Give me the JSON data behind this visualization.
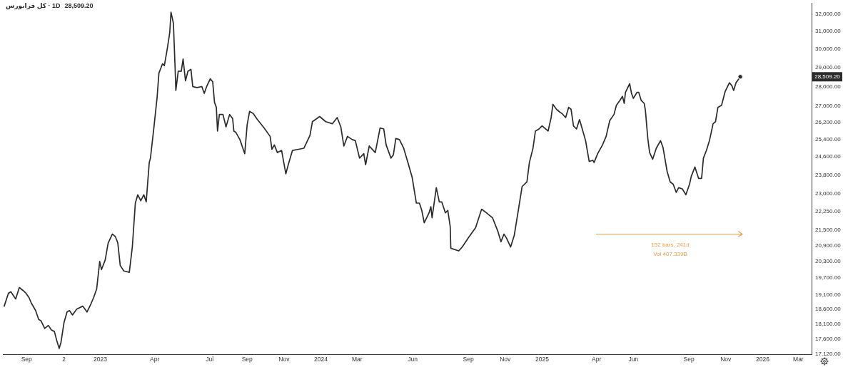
{
  "chart_data": {
    "type": "line",
    "title": "کل فرابورس · 1D",
    "subtitle": "28,509.20",
    "annotations": [
      "152 bars, 241d",
      "Vol 407.339B",
      {
        "text": "28,509.20",
        "y": 28509.2
      }
    ],
    "xlim": [
      "2022-07-24",
      "2026-03-23"
    ],
    "xticks": [
      {
        "value": "2022-09-01",
        "label": "Sep"
      },
      {
        "value": "2022-11-02",
        "label": "2"
      },
      {
        "value": "2023-01-01",
        "label": "2023"
      },
      {
        "value": "2023-04-01",
        "label": "Apr"
      },
      {
        "value": "2023-07-01",
        "label": "Jul"
      },
      {
        "value": "2023-09-01",
        "label": "Sep"
      },
      {
        "value": "2023-11-01",
        "label": "Nov"
      },
      {
        "value": "2024-01-01",
        "label": "2024"
      },
      {
        "value": "2024-03-01",
        "label": "Mar"
      },
      {
        "value": "2024-06-01",
        "label": "Jun"
      },
      {
        "value": "2024-09-01",
        "label": "Sep"
      },
      {
        "value": "2024-11-01",
        "label": "Nov"
      },
      {
        "value": "2025-01-01",
        "label": "2025"
      },
      {
        "value": "2025-04-01",
        "label": "Apr"
      },
      {
        "value": "2025-06-01",
        "label": "Jun"
      },
      {
        "value": "2025-09-01",
        "label": "Sep"
      },
      {
        "value": "2025-11-01",
        "label": "Nov"
      },
      {
        "value": "2026-01-01",
        "label": "2026"
      },
      {
        "value": "2026-03-01",
        "label": "Mar"
      }
    ],
    "ylim": [
      17120,
      32650
    ],
    "yticks": [
      {
        "value": 17120,
        "label": "17,120.00"
      },
      {
        "value": 17600,
        "label": "17,600.00"
      },
      {
        "value": 18100,
        "label": "18,100.00"
      },
      {
        "value": 18600,
        "label": "18,600.00"
      },
      {
        "value": 19100,
        "label": "19,100.00"
      },
      {
        "value": 19700,
        "label": "19,700.00"
      },
      {
        "value": 20300,
        "label": "20,300.00"
      },
      {
        "value": 20900,
        "label": "20,900.00"
      },
      {
        "value": 21500,
        "label": "21,500.00"
      },
      {
        "value": 22250,
        "label": "22,250.00"
      },
      {
        "value": 23000,
        "label": "23,000.00"
      },
      {
        "value": 23800,
        "label": "23,800.00"
      },
      {
        "value": 24600,
        "label": "24,600.00"
      },
      {
        "value": 25400,
        "label": "25,400.00"
      },
      {
        "value": 26200,
        "label": "26,200.00"
      },
      {
        "value": 27000,
        "label": "27,000.00"
      },
      {
        "value": 28000,
        "label": "28,000.00"
      },
      {
        "value": 29000,
        "label": "29,000.00"
      },
      {
        "value": 30000,
        "label": "30,000.00"
      },
      {
        "value": 31000,
        "label": "31,000.00"
      },
      {
        "value": 32000,
        "label": "32,000.00"
      }
    ],
    "log": "y",
    "grid": false,
    "legend": false,
    "series": [
      {
        "color": "#2b2b2b",
        "x": [
          "2022-07-26",
          "2022-08-02",
          "2022-08-06",
          "2022-08-14",
          "2022-08-20",
          "2022-08-26",
          "2022-08-31",
          "2022-09-05",
          "2022-09-09",
          "2022-09-16",
          "2022-09-21",
          "2022-09-25",
          "2022-10-01",
          "2022-10-07",
          "2022-10-12",
          "2022-10-17",
          "2022-10-21",
          "2022-10-25",
          "2022-10-28",
          "2022-11-02",
          "2022-11-07",
          "2022-11-11",
          "2022-11-16",
          "2022-11-23",
          "2022-12-03",
          "2022-12-10",
          "2022-12-17",
          "2022-12-21",
          "2022-12-26",
          "2022-12-31",
          "2023-01-03",
          "2023-01-09",
          "2023-01-14",
          "2023-01-21",
          "2023-01-26",
          "2023-01-30",
          "2023-02-03",
          "2023-02-09",
          "2023-02-18",
          "2023-02-23",
          "2023-02-28",
          "2023-03-04",
          "2023-03-09",
          "2023-03-14",
          "2023-03-18",
          "2023-03-23",
          "2023-03-25",
          "2023-03-31",
          "2023-04-05",
          "2023-04-08",
          "2023-04-11",
          "2023-04-14",
          "2023-04-17",
          "2023-04-22",
          "2023-04-26",
          "2023-04-28",
          "2023-05-02",
          "2023-05-05",
          "2023-05-06",
          "2023-05-10",
          "2023-05-15",
          "2023-05-18",
          "2023-05-22",
          "2023-05-26",
          "2023-05-31",
          "2023-06-03",
          "2023-06-10",
          "2023-06-18",
          "2023-06-22",
          "2023-06-26",
          "2023-07-02",
          "2023-07-06",
          "2023-07-09",
          "2023-07-12",
          "2023-07-14",
          "2023-07-17",
          "2023-07-23",
          "2023-07-28",
          "2023-08-03",
          "2023-08-08",
          "2023-08-10",
          "2023-08-13",
          "2023-08-20",
          "2023-08-28",
          "2023-09-01",
          "2023-09-05",
          "2023-09-11",
          "2023-09-18",
          "2023-09-29",
          "2023-10-09",
          "2023-10-12",
          "2023-10-16",
          "2023-10-21",
          "2023-10-28",
          "2023-11-04",
          "2023-11-08",
          "2023-11-15",
          "2023-11-25",
          "2023-12-04",
          "2023-12-14",
          "2023-12-18",
          "2023-12-30",
          "2024-01-09",
          "2024-01-20",
          "2024-01-28",
          "2024-02-03",
          "2024-02-08",
          "2024-02-14",
          "2024-02-22",
          "2024-02-27",
          "2024-03-05",
          "2024-03-12",
          "2024-03-15",
          "2024-03-21",
          "2024-03-31",
          "2024-04-08",
          "2024-04-14",
          "2024-04-18",
          "2024-04-26",
          "2024-04-30",
          "2024-05-04",
          "2024-05-10",
          "2024-05-17",
          "2024-05-24",
          "2024-05-31",
          "2024-06-07",
          "2024-06-12",
          "2024-06-16",
          "2024-06-20",
          "2024-06-28",
          "2024-07-01",
          "2024-07-03",
          "2024-07-10",
          "2024-07-15",
          "2024-07-19",
          "2024-07-25",
          "2024-07-29",
          "2024-08-02",
          "2024-08-03",
          "2024-08-16",
          "2024-08-22",
          "2024-09-01",
          "2024-09-13",
          "2024-09-23",
          "2024-10-01",
          "2024-10-11",
          "2024-10-20",
          "2024-10-25",
          "2024-10-30",
          "2024-11-03",
          "2024-11-10",
          "2024-11-16",
          "2024-11-23",
          "2024-11-29",
          "2024-12-07",
          "2024-12-11",
          "2024-12-17",
          "2024-12-21",
          "2024-12-27",
          "2025-01-01",
          "2025-01-11",
          "2025-01-16",
          "2025-01-19",
          "2025-01-25",
          "2025-01-31",
          "2025-02-03",
          "2025-02-09",
          "2025-02-14",
          "2025-02-18",
          "2025-02-22",
          "2025-02-27",
          "2025-03-04",
          "2025-03-08",
          "2025-03-14",
          "2025-03-20",
          "2025-03-26",
          "2025-03-28",
          "2025-04-03",
          "2025-04-11",
          "2025-04-17",
          "2025-04-23",
          "2025-04-30",
          "2025-05-04",
          "2025-05-10",
          "2025-05-14",
          "2025-05-17",
          "2025-05-19",
          "2025-05-26",
          "2025-05-29",
          "2025-06-01",
          "2025-06-07",
          "2025-06-10",
          "2025-06-14",
          "2025-06-19",
          "2025-06-21",
          "2025-06-25",
          "2025-06-28",
          "2025-07-03",
          "2025-07-09",
          "2025-07-16",
          "2025-07-20",
          "2025-07-27",
          "2025-08-01",
          "2025-08-06",
          "2025-08-11",
          "2025-08-15",
          "2025-08-21",
          "2025-08-27",
          "2025-09-02",
          "2025-09-05",
          "2025-09-11",
          "2025-09-17",
          "2025-09-22",
          "2025-09-25",
          "2025-09-30",
          "2025-10-05",
          "2025-10-11",
          "2025-10-15",
          "2025-10-19",
          "2025-10-25",
          "2025-10-31",
          "2025-11-07",
          "2025-11-11",
          "2025-11-14",
          "2025-11-18",
          "2025-11-25"
        ],
        "values": [
          18700,
          19150,
          19200,
          18950,
          19350,
          19250,
          19150,
          19000,
          18800,
          18550,
          18250,
          18200,
          17950,
          18050,
          17900,
          17850,
          17550,
          17300,
          17500,
          18150,
          18500,
          18550,
          18400,
          18600,
          18700,
          18500,
          18800,
          19000,
          19300,
          20300,
          20000,
          20350,
          21000,
          21350,
          21250,
          21000,
          20150,
          19950,
          19900,
          20850,
          22600,
          22950,
          22700,
          22950,
          22650,
          24350,
          24550,
          26050,
          27450,
          28700,
          28950,
          29200,
          29100,
          30050,
          30950,
          32100,
          31450,
          28800,
          27800,
          28800,
          28800,
          29450,
          28300,
          28800,
          28900,
          28000,
          27950,
          28000,
          27650,
          28000,
          28400,
          28250,
          27200,
          26950,
          25800,
          26600,
          26600,
          26000,
          26600,
          26400,
          25800,
          25750,
          25400,
          24750,
          26100,
          26750,
          26650,
          26350,
          25950,
          25550,
          24950,
          25150,
          24800,
          24900,
          23850,
          24250,
          24900,
          24950,
          25000,
          25600,
          26250,
          26500,
          26250,
          26150,
          26450,
          26000,
          25100,
          25550,
          25400,
          25350,
          24550,
          24750,
          24250,
          25100,
          24800,
          25950,
          25900,
          25150,
          24550,
          24700,
          25450,
          25400,
          25000,
          24350,
          23700,
          22600,
          22600,
          22300,
          21800,
          22200,
          22450,
          22000,
          23250,
          22650,
          22650,
          22200,
          22300,
          21650,
          20800,
          20700,
          20850,
          21200,
          21600,
          22350,
          22200,
          22000,
          21450,
          21050,
          21350,
          21200,
          20850,
          21300,
          22350,
          23300,
          23500,
          24350,
          25000,
          25800,
          25900,
          26050,
          25800,
          26450,
          27100,
          26850,
          26700,
          26650,
          26450,
          26950,
          26850,
          26050,
          25900,
          26350,
          25950,
          25350,
          24400,
          24450,
          24350,
          24750,
          25150,
          25550,
          26300,
          26600,
          27050,
          27300,
          27500,
          27150,
          27700,
          28150,
          27650,
          27400,
          27700,
          27700,
          27300,
          27150,
          26800,
          25450,
          24800,
          24500,
          25000,
          25350,
          25050,
          23950,
          23500,
          23400,
          23050,
          23250,
          23200,
          22950,
          23400,
          23750,
          24150,
          23650,
          23650,
          24550,
          24900,
          25350,
          26150,
          26250,
          26950,
          27050,
          27750,
          28200,
          28050,
          27800,
          28200,
          28509.2
        ]
      },
      {
        "type": "scatter",
        "color": "#2b2b2b",
        "marker": "circle",
        "x": [
          "2025-11-25"
        ],
        "values": [
          28509.2
        ]
      }
    ]
  }
}
